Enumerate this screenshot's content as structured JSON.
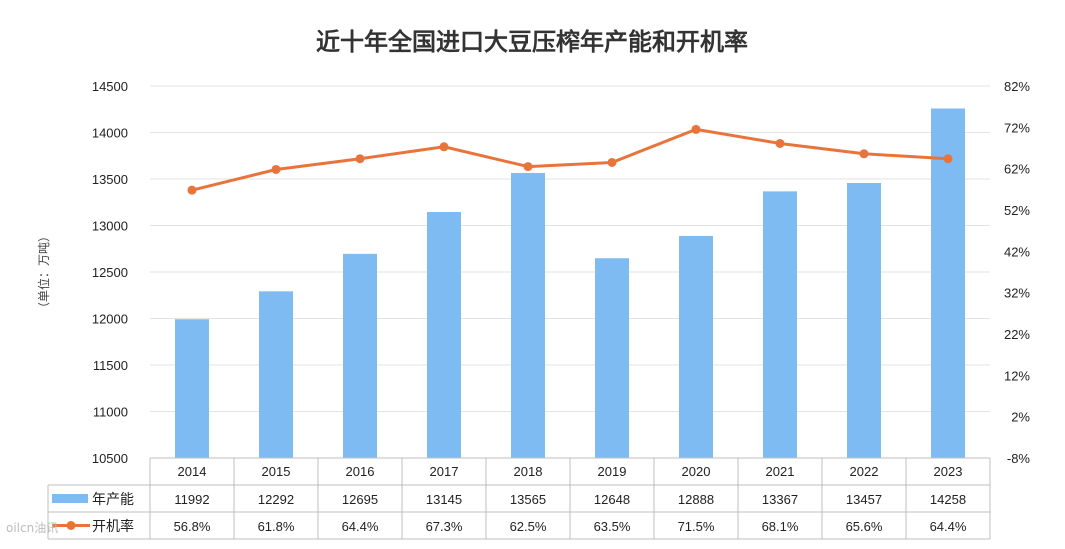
{
  "chart_data": {
    "type": "bar+line",
    "title": "近十年全国进口大豆压榨年产能和开机率",
    "ylabel": "（单位：万吨）",
    "categories": [
      "2014",
      "2015",
      "2016",
      "2017",
      "2018",
      "2019",
      "2020",
      "2021",
      "2022",
      "2023"
    ],
    "series": [
      {
        "name": "年产能",
        "type": "bar",
        "axis": "left",
        "color": "#7DBBF2",
        "values": [
          11992,
          12292,
          12695,
          13145,
          13565,
          12648,
          12888,
          13367,
          13457,
          14258
        ],
        "labels": [
          "11992",
          "12292",
          "12695",
          "13145",
          "13565",
          "12648",
          "12888",
          "13367",
          "13457",
          "14258"
        ]
      },
      {
        "name": "开机率",
        "type": "line",
        "axis": "right",
        "color": "#E8743B",
        "values": [
          56.8,
          61.8,
          64.4,
          67.3,
          62.5,
          63.5,
          71.5,
          68.1,
          65.6,
          64.4
        ],
        "labels": [
          "56.8%",
          "61.8%",
          "64.4%",
          "67.3%",
          "62.5%",
          "63.5%",
          "71.5%",
          "68.1%",
          "65.6%",
          "64.4%"
        ]
      }
    ],
    "y_left": {
      "min": 10500,
      "max": 14500,
      "step": 500,
      "ticks": [
        "10500",
        "11000",
        "11500",
        "12000",
        "12500",
        "13000",
        "13500",
        "14000",
        "14500"
      ]
    },
    "y_right": {
      "min": -8,
      "max": 82,
      "step": 10,
      "ticks": [
        "-8%",
        "2%",
        "12%",
        "22%",
        "32%",
        "42%",
        "52%",
        "62%",
        "72%",
        "82%"
      ]
    },
    "grid": true,
    "legend": "data-table"
  },
  "watermark": "oilcn油讯"
}
